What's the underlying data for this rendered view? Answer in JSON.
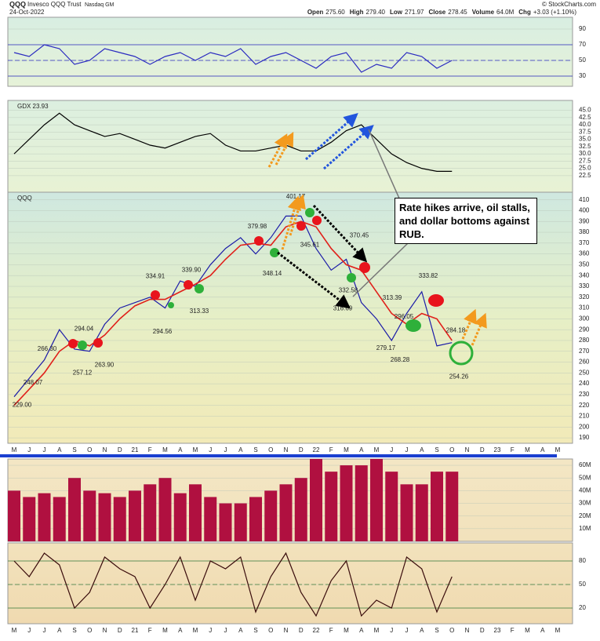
{
  "header": {
    "symbol": "QQQ",
    "name": "Invesco QQQ Trust",
    "exchange": "Nasdaq GM",
    "date": "24-Oct-2022",
    "copyright": "© StockCharts.com",
    "quote": [
      {
        "label": "Open",
        "value": "275.60"
      },
      {
        "label": "High",
        "value": "279.40"
      },
      {
        "label": "Low",
        "value": "271.97"
      },
      {
        "label": "Close",
        "value": "278.45"
      },
      {
        "label": "Volume",
        "value": "64.0M"
      },
      {
        "label": "Chg",
        "value": "+3.03 (+1.10%)"
      }
    ]
  },
  "annotation": "Rate hikes arrive, oil stalls, and dollar bottoms against RUB.",
  "chart_data": [
    {
      "type": "line",
      "ylim": [
        17,
        105
      ],
      "yticks": [
        30,
        50,
        70,
        90
      ],
      "reference_lines": [
        {
          "value": 70,
          "style": "solid"
        },
        {
          "value": 50,
          "style": "dashed"
        },
        {
          "value": 30,
          "style": "solid"
        }
      ],
      "series": [
        {
          "color": "#2b2bc0",
          "values": [
            60,
            55,
            70,
            65,
            45,
            50,
            65,
            60,
            55,
            45,
            55,
            60,
            50,
            60,
            55,
            65,
            45,
            55,
            60,
            50,
            40,
            55,
            60,
            35,
            45,
            40,
            60,
            55,
            40,
            50,
            null,
            null,
            null,
            null,
            null,
            null,
            null
          ]
        }
      ]
    },
    {
      "type": "line",
      "ylim": [
        16.8,
        48.4
      ],
      "yticks": [
        22.5,
        {
          "value": 25,
          "label": "25.0"
        },
        27.5,
        {
          "value": 30,
          "label": "30.0"
        },
        32.5,
        {
          "value": 35,
          "label": "35.0"
        },
        37.5,
        {
          "value": 40,
          "label": "40.0"
        },
        42.5,
        {
          "value": 45,
          "label": "45.0"
        }
      ],
      "series": [
        {
          "name": "GDX 23.93",
          "color": "#000000",
          "values": [
            30,
            35,
            40,
            44,
            40,
            38,
            36,
            37,
            35,
            33,
            32,
            34,
            36,
            37,
            33,
            31,
            31,
            32,
            33,
            31,
            31,
            34,
            38,
            40,
            35,
            30,
            27,
            25,
            24,
            24,
            null,
            null,
            null,
            null,
            null,
            null,
            null
          ]
        }
      ]
    },
    {
      "type": "line",
      "ylim": [
        185,
        417
      ],
      "yticks": [
        190,
        200,
        210,
        220,
        230,
        240,
        250,
        260,
        270,
        280,
        290,
        300,
        310,
        320,
        330,
        340,
        350,
        360,
        370,
        380,
        390,
        400,
        410
      ],
      "categories": [
        "M",
        "J",
        "J",
        "A",
        "S",
        "O",
        "N",
        "D",
        "21",
        "F",
        "M",
        "A",
        "M",
        "J",
        "J",
        "A",
        "S",
        "O",
        "N",
        "D",
        "22",
        "F",
        "M",
        "A",
        "M",
        "J",
        "J",
        "A",
        "S",
        "O",
        "N",
        "D",
        "23",
        "F",
        "M",
        "A",
        "M"
      ],
      "series": [
        {
          "name": "QQQ",
          "color": "#1c1ca8",
          "values": [
            228,
            245,
            262,
            290,
            272,
            270,
            295,
            310,
            315,
            320,
            310,
            335,
            330,
            350,
            365,
            375,
            360,
            375,
            395,
            395,
            365,
            345,
            355,
            315,
            300,
            280,
            305,
            325,
            275,
            278,
            null,
            null,
            null,
            null,
            null,
            null,
            null
          ]
        },
        {
          "color": "#e0201a",
          "values": [
            220,
            235,
            250,
            270,
            280,
            275,
            285,
            300,
            312,
            318,
            318,
            325,
            332,
            340,
            355,
            368,
            370,
            368,
            385,
            390,
            385,
            365,
            350,
            345,
            325,
            305,
            295,
            305,
            300,
            280,
            null,
            null,
            null,
            null,
            null,
            null,
            null
          ]
        }
      ],
      "price_labels": [
        {
          "value": 229.0,
          "label": "229.00"
        },
        {
          "value": 248.07,
          "label": "248.07"
        },
        {
          "value": 266.3,
          "label": "266.30"
        },
        {
          "value": 257.12,
          "label": "257.12"
        },
        {
          "value": 294.04,
          "label": "294.04"
        },
        {
          "value": 263.9,
          "label": "263.90"
        },
        {
          "value": 334.91,
          "label": "334.91"
        },
        {
          "value": 294.56,
          "label": "294.56"
        },
        {
          "value": 339.9,
          "label": "339.90"
        },
        {
          "value": 313.33,
          "label": "313.33"
        },
        {
          "value": 379.98,
          "label": "379.98"
        },
        {
          "value": 348.14,
          "label": "348.14"
        },
        {
          "value": 401.17,
          "label": "401.17"
        },
        {
          "value": 345.61,
          "label": "345.61"
        },
        {
          "value": 332.58,
          "label": "332.58"
        },
        {
          "value": 316.69,
          "label": "316.69"
        },
        {
          "value": 370.45,
          "label": "370.45"
        },
        {
          "value": 313.39,
          "label": "313.39"
        },
        {
          "value": 296.05,
          "label": "296.05"
        },
        {
          "value": 279.17,
          "label": "279.17"
        },
        {
          "value": 268.28,
          "label": "268.28"
        },
        {
          "value": 333.82,
          "label": "333.82"
        },
        {
          "value": 284.18,
          "label": "284.18"
        },
        {
          "value": 254.26,
          "label": "254.26"
        }
      ]
    },
    {
      "type": "bar",
      "ylim": [
        0,
        65
      ],
      "yticks": [
        {
          "value": 10,
          "label": "10M"
        },
        {
          "value": 20,
          "label": "20M"
        },
        {
          "value": 30,
          "label": "30M"
        },
        {
          "value": 40,
          "label": "40M"
        },
        {
          "value": 50,
          "label": "50M"
        },
        {
          "value": 60,
          "label": "60M"
        }
      ],
      "series": [
        {
          "color": "#b01040",
          "values": [
            40,
            35,
            38,
            35,
            50,
            40,
            38,
            35,
            40,
            45,
            50,
            38,
            45,
            35,
            30,
            30,
            35,
            40,
            45,
            50,
            65,
            55,
            60,
            60,
            65,
            55,
            45,
            45,
            55,
            55,
            null,
            null,
            null,
            null,
            null,
            null,
            null
          ]
        }
      ]
    },
    {
      "type": "line",
      "ylim": [
        0,
        103
      ],
      "yticks": [
        20,
        50,
        80
      ],
      "reference_lines": [
        {
          "value": 80,
          "style": "solid"
        },
        {
          "value": 50,
          "style": "dashed"
        },
        {
          "value": 20,
          "style": "solid"
        }
      ],
      "categories": [
        "M",
        "J",
        "J",
        "A",
        "S",
        "O",
        "N",
        "D",
        "21",
        "F",
        "M",
        "A",
        "M",
        "J",
        "J",
        "A",
        "S",
        "O",
        "N",
        "D",
        "22",
        "F",
        "M",
        "A",
        "M",
        "J",
        "J",
        "A",
        "S",
        "O",
        "N",
        "D",
        "23",
        "F",
        "M",
        "A",
        "M"
      ],
      "series": [
        {
          "color": "#3a0c0c",
          "values": [
            80,
            60,
            90,
            75,
            20,
            40,
            85,
            70,
            60,
            20,
            50,
            85,
            30,
            80,
            70,
            85,
            15,
            60,
            90,
            40,
            10,
            55,
            80,
            10,
            30,
            20,
            85,
            70,
            15,
            60,
            null,
            null,
            null,
            null,
            null,
            null,
            null
          ]
        }
      ]
    }
  ]
}
